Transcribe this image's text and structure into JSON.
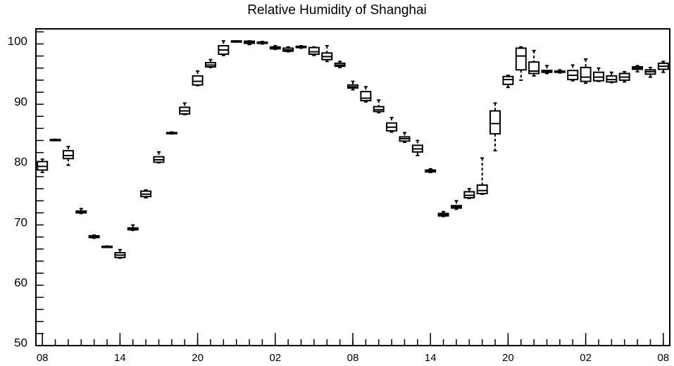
{
  "chart_data": {
    "type": "box",
    "title": "Relative Humidity of Shanghai",
    "xlabel": "",
    "ylabel": "",
    "ylim": [
      49.5,
      102
    ],
    "yticks": [
      50,
      60,
      70,
      80,
      90,
      100
    ],
    "xticks": [
      {
        "pos": 0,
        "label": "08"
      },
      {
        "pos": 6,
        "label": "14"
      },
      {
        "pos": 12,
        "label": "20"
      },
      {
        "pos": 18,
        "label": "02"
      },
      {
        "pos": 24,
        "label": "08"
      },
      {
        "pos": 30,
        "label": "14"
      },
      {
        "pos": 36,
        "label": "20"
      },
      {
        "pos": 42,
        "label": "02"
      },
      {
        "pos": 48,
        "label": "08"
      }
    ],
    "xlim": [
      -0.5,
      48.5
    ],
    "grid": false,
    "boxes": [
      {
        "x": 0,
        "min": 78.2,
        "q1": 78.6,
        "median": 79.2,
        "q3": 80.0,
        "max": 80.4
      },
      {
        "x": 1,
        "min": 83.5,
        "q1": 83.55,
        "median": 83.6,
        "q3": 83.65,
        "max": 83.7
      },
      {
        "x": 2,
        "min": 79.4,
        "q1": 80.5,
        "median": 81.0,
        "q3": 81.8,
        "max": 82.5
      },
      {
        "x": 3,
        "min": 71.4,
        "q1": 71.5,
        "median": 71.7,
        "q3": 71.8,
        "max": 72.2
      },
      {
        "x": 4,
        "min": 67.3,
        "q1": 67.4,
        "median": 67.5,
        "q3": 67.7,
        "max": 67.8
      },
      {
        "x": 5,
        "min": 65.8,
        "q1": 65.85,
        "median": 65.9,
        "q3": 65.95,
        "max": 66.0
      },
      {
        "x": 6,
        "min": 64.0,
        "q1": 64.1,
        "median": 64.5,
        "q3": 64.9,
        "max": 65.4
      },
      {
        "x": 7,
        "min": 68.6,
        "q1": 68.7,
        "median": 68.8,
        "q3": 69.0,
        "max": 69.5
      },
      {
        "x": 8,
        "min": 74.0,
        "q1": 74.2,
        "median": 74.6,
        "q3": 75.1,
        "max": 75.3
      },
      {
        "x": 9,
        "min": 79.8,
        "q1": 79.9,
        "median": 80.3,
        "q3": 80.8,
        "max": 81.6
      },
      {
        "x": 10,
        "min": 84.6,
        "q1": 84.7,
        "median": 84.75,
        "q3": 84.8,
        "max": 84.9
      },
      {
        "x": 11,
        "min": 87.8,
        "q1": 87.9,
        "median": 88.4,
        "q3": 89.0,
        "max": 89.7
      },
      {
        "x": 12,
        "min": 92.6,
        "q1": 92.7,
        "median": 93.3,
        "q3": 94.2,
        "max": 95.0
      },
      {
        "x": 13,
        "min": 95.6,
        "q1": 95.7,
        "median": 96.0,
        "q3": 96.4,
        "max": 96.9
      },
      {
        "x": 14,
        "min": 97.6,
        "q1": 97.8,
        "median": 98.5,
        "q3": 99.2,
        "max": 100.0
      },
      {
        "x": 15,
        "min": 99.95,
        "q1": 99.96,
        "median": 99.98,
        "q3": 99.99,
        "max": 100.0
      },
      {
        "x": 16,
        "min": 99.4,
        "q1": 99.6,
        "median": 99.8,
        "q3": 99.95,
        "max": 100.0
      },
      {
        "x": 17,
        "min": 99.5,
        "q1": 99.6,
        "median": 99.7,
        "q3": 99.8,
        "max": 99.9
      },
      {
        "x": 18,
        "min": 98.6,
        "q1": 98.7,
        "median": 98.8,
        "q3": 99.0,
        "max": 99.2
      },
      {
        "x": 19,
        "min": 98.2,
        "q1": 98.3,
        "median": 98.5,
        "q3": 98.8,
        "max": 99.0
      },
      {
        "x": 20,
        "min": 98.8,
        "q1": 98.9,
        "median": 99.0,
        "q3": 99.1,
        "max": 99.2
      },
      {
        "x": 21,
        "min": 97.6,
        "q1": 97.8,
        "median": 98.2,
        "q3": 98.9,
        "max": 99.0
      },
      {
        "x": 22,
        "min": 96.6,
        "q1": 96.9,
        "median": 97.4,
        "q3": 98.0,
        "max": 99.2
      },
      {
        "x": 23,
        "min": 95.6,
        "q1": 95.8,
        "median": 96.0,
        "q3": 96.3,
        "max": 96.6
      },
      {
        "x": 24,
        "min": 91.9,
        "q1": 92.2,
        "median": 92.4,
        "q3": 92.7,
        "max": 93.3
      },
      {
        "x": 25,
        "min": 89.9,
        "q1": 90.1,
        "median": 90.5,
        "q3": 91.6,
        "max": 92.4
      },
      {
        "x": 26,
        "min": 88.1,
        "q1": 88.3,
        "median": 88.6,
        "q3": 89.1,
        "max": 90.2
      },
      {
        "x": 27,
        "min": 84.9,
        "q1": 85.1,
        "median": 85.7,
        "q3": 86.4,
        "max": 87.3
      },
      {
        "x": 28,
        "min": 83.2,
        "q1": 83.4,
        "median": 83.8,
        "q3": 84.1,
        "max": 84.8
      },
      {
        "x": 29,
        "min": 81.0,
        "q1": 81.6,
        "median": 82.1,
        "q3": 82.7,
        "max": 83.5
      },
      {
        "x": 30,
        "min": 78.2,
        "q1": 78.3,
        "median": 78.4,
        "q3": 78.6,
        "max": 78.8
      },
      {
        "x": 31,
        "min": 70.9,
        "q1": 71.0,
        "median": 71.2,
        "q3": 71.4,
        "max": 71.7
      },
      {
        "x": 32,
        "min": 72.1,
        "q1": 72.3,
        "median": 72.5,
        "q3": 72.7,
        "max": 73.5
      },
      {
        "x": 33,
        "min": 73.9,
        "q1": 74.0,
        "median": 74.4,
        "q3": 75.0,
        "max": 75.5
      },
      {
        "x": 34,
        "min": 74.6,
        "q1": 74.7,
        "median": 75.2,
        "q3": 76.1,
        "max": 80.6
      },
      {
        "x": 35,
        "min": 81.8,
        "q1": 84.6,
        "median": 86.3,
        "q3": 88.4,
        "max": 89.7
      },
      {
        "x": 36,
        "min": 92.3,
        "q1": 92.8,
        "median": 93.6,
        "q3": 94.1,
        "max": 94.3
      },
      {
        "x": 37,
        "min": 93.5,
        "q1": 95.2,
        "median": 97.5,
        "q3": 98.8,
        "max": 99.0
      },
      {
        "x": 38,
        "min": 94.2,
        "q1": 94.6,
        "median": 95.0,
        "q3": 96.5,
        "max": 98.4
      },
      {
        "x": 39,
        "min": 94.6,
        "q1": 94.8,
        "median": 94.9,
        "q3": 95.1,
        "max": 95.9
      },
      {
        "x": 40,
        "min": 94.7,
        "q1": 94.8,
        "median": 94.9,
        "q3": 95.0,
        "max": 95.2
      },
      {
        "x": 41,
        "min": 93.4,
        "q1": 93.6,
        "median": 94.3,
        "q3": 95.1,
        "max": 96.0
      },
      {
        "x": 42,
        "min": 93.0,
        "q1": 93.3,
        "median": 94.0,
        "q3": 95.6,
        "max": 97.0
      },
      {
        "x": 43,
        "min": 93.3,
        "q1": 93.4,
        "median": 94.0,
        "q3": 94.8,
        "max": 95.5
      },
      {
        "x": 44,
        "min": 93.1,
        "q1": 93.2,
        "median": 93.6,
        "q3": 94.2,
        "max": 94.8
      },
      {
        "x": 45,
        "min": 93.2,
        "q1": 93.5,
        "median": 94.0,
        "q3": 94.6,
        "max": 94.9
      },
      {
        "x": 46,
        "min": 94.9,
        "q1": 95.3,
        "median": 95.5,
        "q3": 95.7,
        "max": 95.9
      },
      {
        "x": 47,
        "min": 94.0,
        "q1": 94.5,
        "median": 94.9,
        "q3": 95.2,
        "max": 95.6
      },
      {
        "x": 48,
        "min": 94.8,
        "q1": 95.3,
        "median": 95.8,
        "q3": 96.3,
        "max": 96.6
      }
    ]
  }
}
